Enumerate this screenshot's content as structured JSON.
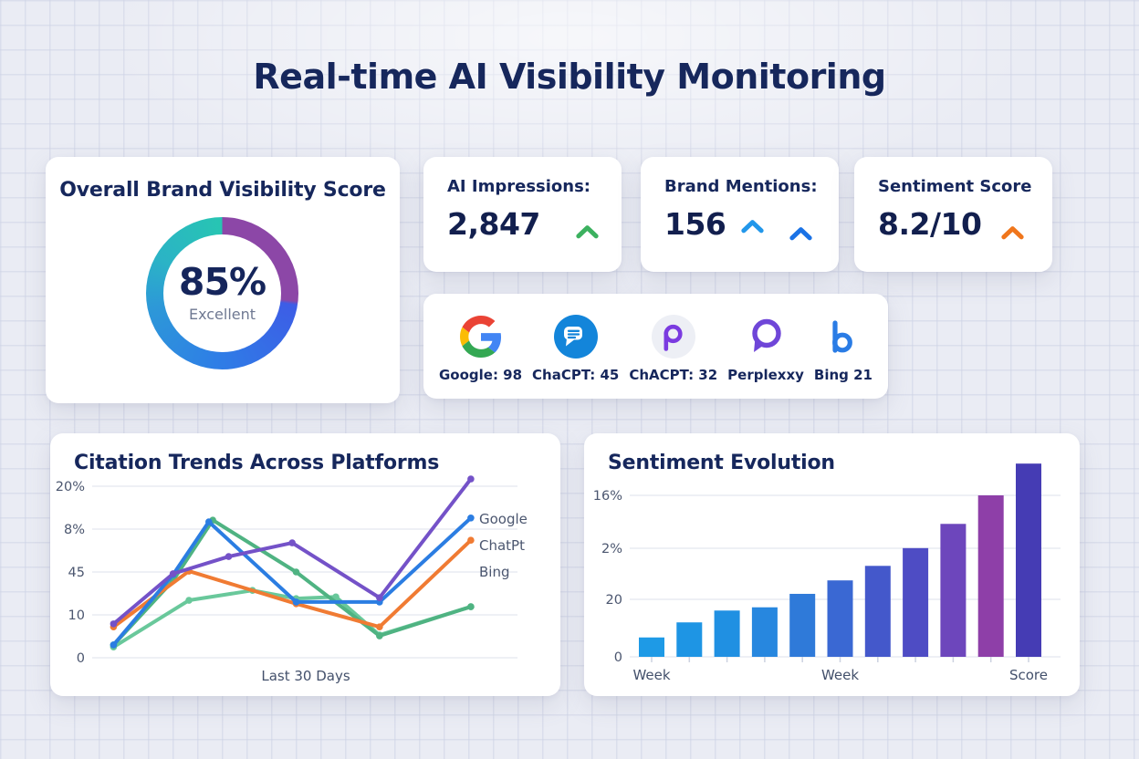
{
  "page": {
    "title": "Real-time AI Visibility Monitoring"
  },
  "score_card": {
    "title": "Overall Brand Visibility Score",
    "value": "85%",
    "label": "Excellent",
    "ring_stops": [
      {
        "color": "#8c47a7",
        "at": "0deg 96deg"
      },
      {
        "color": "#3d5de6",
        "at": "99deg"
      },
      {
        "color": "#2e7ee6",
        "at": "185deg"
      },
      {
        "color": "#2d98d8",
        "at": "258deg"
      },
      {
        "color": "#2bb3c6",
        "at": "298deg"
      },
      {
        "color": "#27c5b2",
        "at": "360deg"
      }
    ]
  },
  "stat_cards": [
    {
      "label": "AI Impressions:",
      "value": "2,847",
      "trends": [
        {
          "color": "#3cb15f",
          "placement": "right",
          "drop": 8,
          "right_gap": 10
        }
      ]
    },
    {
      "label": "Brand Mentions:",
      "value": "156",
      "trends": [
        {
          "color": "#2297ea",
          "placement": "inline",
          "drop": 2,
          "right_gap": 0
        },
        {
          "color": "#1a72e6",
          "placement": "right",
          "drop": 10,
          "right_gap": 14
        }
      ]
    },
    {
      "label": "Sentiment Score",
      "value": "8.2/10",
      "trends": [
        {
          "color": "#f0761c",
          "placement": "right",
          "drop": 9,
          "right_gap": 16
        }
      ]
    }
  ],
  "platforms": [
    {
      "icon": "google-g",
      "icon_color": null,
      "label": "Google: 98"
    },
    {
      "icon": "chat-bubble-blue",
      "icon_color": "#1385da",
      "label": "ChaCPT: 45"
    },
    {
      "icon": "letter-p",
      "icon_color": "#7b3be0",
      "label": "ChACPT: 32"
    },
    {
      "icon": "speech-bubble-purple",
      "icon_color": "#6f46d8",
      "label": "Perplexxy"
    },
    {
      "icon": "bing-b",
      "icon_color": "#2a7ce5",
      "label": "Bing 21"
    }
  ],
  "chart_data": [
    {
      "type": "line",
      "title": "Citation Trends Across Platforms",
      "xlabel": "Last 30 Days",
      "y_tick_labels": [
        "20%",
        "8%",
        "45",
        "10",
        "0"
      ],
      "legend": [
        "Google",
        "ChatPt",
        "Bing"
      ],
      "legend_position": "right",
      "grid": true,
      "x_range_pct": [
        0,
        100
      ],
      "y_units_range": [
        0,
        4.5
      ],
      "series": [
        {
          "name": "green-light",
          "color": "#69c89b",
          "points": [
            [
              4,
              0.25
            ],
            [
              23,
              1.34
            ],
            [
              39,
              1.57
            ],
            [
              50,
              1.38
            ],
            [
              60,
              1.42
            ],
            [
              71,
              0.53
            ],
            [
              94,
              1.19
            ]
          ]
        },
        {
          "name": "green-dark",
          "color": "#4fb382",
          "points": [
            [
              4,
              0.3
            ],
            [
              19,
              1.8
            ],
            [
              29,
              3.21
            ],
            [
              50,
              2.0
            ],
            [
              71,
              0.51
            ],
            [
              94,
              1.19
            ]
          ]
        },
        {
          "name": "chatpt-orange",
          "color": "#f07b33",
          "points": [
            [
              4,
              0.72
            ],
            [
              23,
              2.02
            ],
            [
              50,
              1.26
            ],
            [
              71,
              0.72
            ],
            [
              94,
              2.74
            ]
          ]
        },
        {
          "name": "google-blue",
          "color": "#2b7de2",
          "points": [
            [
              4,
              0.3
            ],
            [
              19,
              1.94
            ],
            [
              28,
              3.17
            ],
            [
              50,
              1.3
            ],
            [
              71,
              1.3
            ],
            [
              94,
              3.26
            ]
          ]
        },
        {
          "name": "purple",
          "color": "#7452c8",
          "points": [
            [
              4,
              0.79
            ],
            [
              19,
              1.96
            ],
            [
              33,
              2.36
            ],
            [
              49,
              2.68
            ],
            [
              71,
              1.4
            ],
            [
              94,
              4.17
            ]
          ]
        }
      ]
    },
    {
      "type": "bar",
      "title": "Sentiment Evolution",
      "y_tick_labels": [
        "16%",
        "2%",
        "20",
        "0"
      ],
      "x_tick_labels": [
        "Week",
        "Week",
        "Score"
      ],
      "grid": true,
      "values": [
        0.36,
        0.64,
        0.86,
        0.92,
        1.17,
        1.42,
        1.69,
        2.02,
        2.47,
        3.0,
        3.59
      ],
      "bar_colors": [
        "#1e9ae6",
        "#1e95e4",
        "#2090e2",
        "#2787df",
        "#2f7ad9",
        "#3a68d3",
        "#4458cb",
        "#4e4cc4",
        "#6d46bc",
        "#8e3fa8",
        "#453cb4"
      ]
    }
  ]
}
